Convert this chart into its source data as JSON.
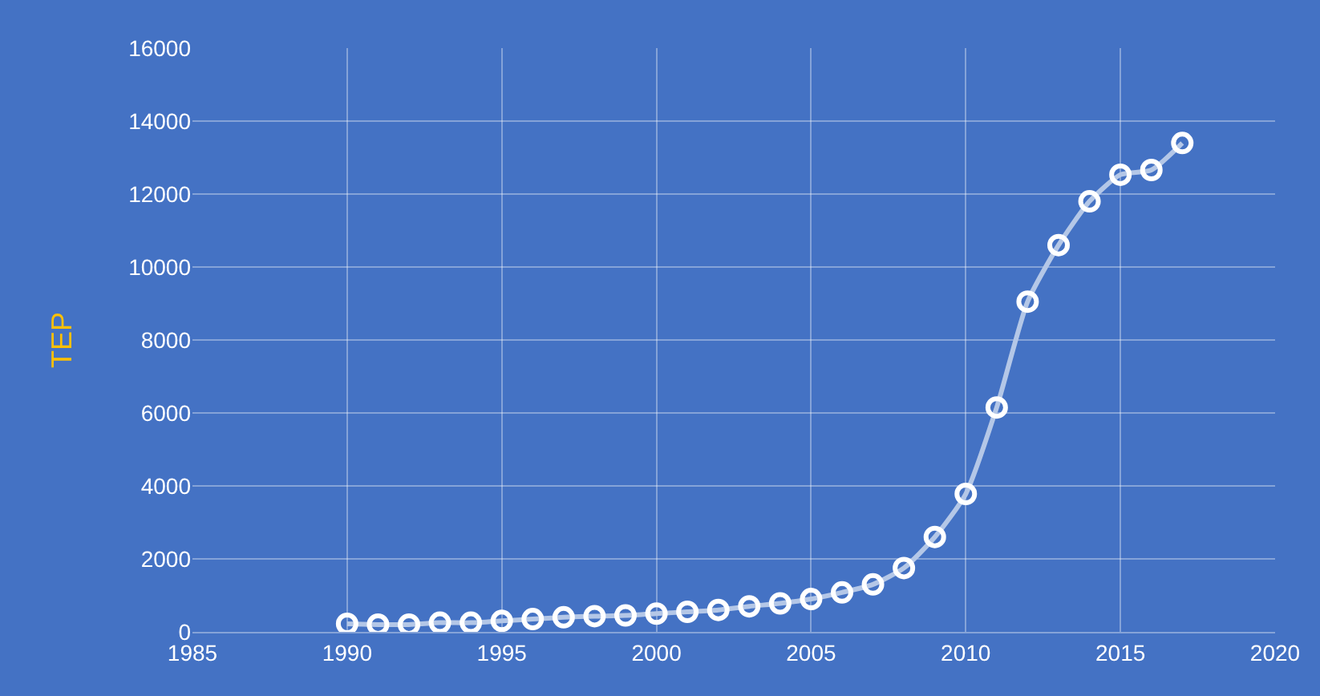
{
  "chart_data": {
    "type": "line",
    "ylabel": "TEP",
    "x": [
      1990,
      1991,
      1992,
      1993,
      1994,
      1995,
      1996,
      1997,
      1998,
      1999,
      2000,
      2001,
      2002,
      2003,
      2004,
      2005,
      2006,
      2007,
      2008,
      2009,
      2010,
      2011,
      2012,
      2013,
      2014,
      2015,
      2016,
      2017
    ],
    "series": [
      {
        "color": "#b4c7e7",
        "values": [
          220,
          200,
          200,
          250,
          250,
          300,
          350,
          400,
          430,
          450,
          500,
          550,
          600,
          700,
          780,
          900,
          1080,
          1300,
          1750,
          2600,
          3780,
          6150,
          9050,
          10600,
          11800,
          12530,
          12660,
          13400
        ]
      }
    ],
    "xlim": [
      1985,
      2020
    ],
    "xticks": [
      1985,
      1990,
      1995,
      2000,
      2005,
      2010,
      2015,
      2020
    ],
    "ylim": [
      0,
      16000
    ],
    "yticks": [
      0,
      2000,
      4000,
      6000,
      8000,
      10000,
      12000,
      14000,
      16000
    ],
    "grid": true,
    "marker": "circle",
    "line_style": "solid",
    "legend": false
  }
}
